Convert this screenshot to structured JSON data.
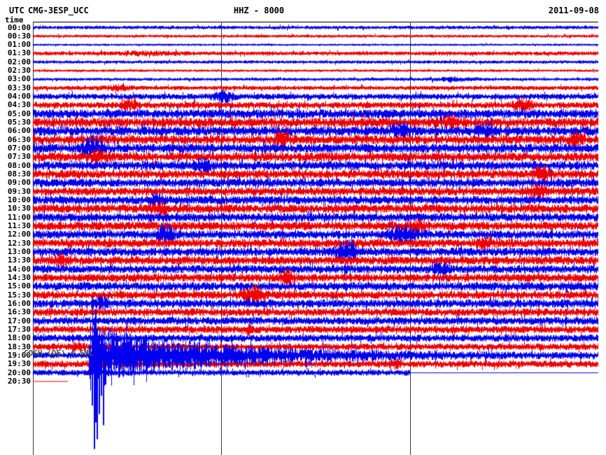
{
  "header": {
    "timezone": "UTC",
    "station": "CMG-3ESP_UCC",
    "channel": "HHZ - 8000",
    "date": "2011-09-08",
    "time_axis_label": "time"
  },
  "chart_data": {
    "type": "helicorder",
    "title": "HHZ - 8000",
    "station": "CMG-3ESP_UCC",
    "timezone": "UTC",
    "date": "2011-09-08",
    "minutes_per_line": 30,
    "x_range_minutes": [
      0,
      30
    ],
    "x_gridlines_minutes": [
      0,
      10,
      20
    ],
    "grid_on": true,
    "trace_colors": {
      "even": "#0000ee",
      "odd": "#ee0000"
    },
    "grid_color": "#3c3c3c",
    "event": {
      "label": "GOCH (DE) 4.5ML",
      "row_label": "19:00",
      "onset_frac": 0.1
    },
    "quake": {
      "mass": [
        80,
        116
      ],
      "coda_base": 3.2,
      "coda_amp": 23,
      "coda_tau": 170,
      "spikes": [
        [
          82,
          14,
          34
        ],
        [
          85,
          28,
          72
        ],
        [
          88,
          52,
          134
        ],
        [
          90,
          66,
          96
        ],
        [
          92,
          38,
          120
        ],
        [
          95,
          30,
          84
        ],
        [
          98,
          22,
          58
        ],
        [
          101,
          16,
          100
        ],
        [
          104,
          14,
          42
        ],
        [
          108,
          11,
          30
        ],
        [
          112,
          9,
          22
        ]
      ]
    },
    "rows": [
      {
        "label": "00:00",
        "amp": 1.6,
        "bursts": []
      },
      {
        "label": "00:30",
        "amp": 1.3,
        "bursts": []
      },
      {
        "label": "01:00",
        "amp": 0.9,
        "bursts": []
      },
      {
        "label": "01:30",
        "amp": 1.9,
        "bursts": [
          [
            0.2,
            1.5,
            30
          ]
        ]
      },
      {
        "label": "02:00",
        "amp": 1.5,
        "bursts": []
      },
      {
        "label": "02:30",
        "amp": 1.1,
        "bursts": []
      },
      {
        "label": "03:00",
        "amp": 1.4,
        "bursts": [
          [
            0.75,
            1.5,
            20
          ]
        ]
      },
      {
        "label": "03:30",
        "amp": 2.0,
        "bursts": [
          [
            0.15,
            2,
            15
          ]
        ]
      },
      {
        "label": "04:00",
        "amp": 2.9,
        "bursts": [
          [
            0.335,
            4.5,
            10
          ]
        ]
      },
      {
        "label": "04:30",
        "amp": 3.2,
        "bursts": [
          [
            0.17,
            4,
            8
          ],
          [
            0.866,
            5,
            9
          ]
        ]
      },
      {
        "label": "05:00",
        "amp": 4.6,
        "bursts": []
      },
      {
        "label": "05:30",
        "amp": 4.8,
        "bursts": [
          [
            0.74,
            5,
            8
          ]
        ]
      },
      {
        "label": "06:00",
        "amp": 4.8,
        "bursts": [
          [
            0.65,
            6,
            9
          ],
          [
            0.8,
            5,
            8
          ]
        ]
      },
      {
        "label": "06:30",
        "amp": 4.6,
        "bursts": [
          [
            0.44,
            5,
            8
          ],
          [
            0.96,
            5,
            7
          ]
        ]
      },
      {
        "label": "07:00",
        "amp": 4.6,
        "bursts": [
          [
            0.105,
            10,
            9
          ]
        ]
      },
      {
        "label": "07:30",
        "amp": 4.6,
        "bursts": [
          [
            0.115,
            6,
            8
          ]
        ]
      },
      {
        "label": "08:00",
        "amp": 4.6,
        "bursts": [
          [
            0.3,
            5,
            7
          ]
        ]
      },
      {
        "label": "08:30",
        "amp": 4.3,
        "bursts": [
          [
            0.9,
            6,
            8
          ]
        ]
      },
      {
        "label": "09:00",
        "amp": 4.3,
        "bursts": []
      },
      {
        "label": "09:30",
        "amp": 4.1,
        "bursts": [
          [
            0.89,
            6,
            8
          ]
        ]
      },
      {
        "label": "10:00",
        "amp": 4.3,
        "bursts": [
          [
            0.22,
            5,
            7
          ]
        ]
      },
      {
        "label": "10:30",
        "amp": 4.3,
        "bursts": [
          [
            0.225,
            6,
            8
          ]
        ]
      },
      {
        "label": "11:00",
        "amp": 4.3,
        "bursts": []
      },
      {
        "label": "11:30",
        "amp": 4.3,
        "bursts": [
          [
            0.68,
            5,
            8
          ]
        ]
      },
      {
        "label": "12:00",
        "amp": 4.3,
        "bursts": [
          [
            0.235,
            8,
            8
          ],
          [
            0.655,
            8,
            12
          ]
        ]
      },
      {
        "label": "12:30",
        "amp": 4.3,
        "bursts": [
          [
            0.8,
            5,
            7
          ]
        ]
      },
      {
        "label": "13:00",
        "amp": 4.3,
        "bursts": [
          [
            0.555,
            12,
            9
          ]
        ]
      },
      {
        "label": "13:30",
        "amp": 4.3,
        "bursts": [
          [
            0.05,
            5,
            6
          ]
        ]
      },
      {
        "label": "14:00",
        "amp": 4.1,
        "bursts": [
          [
            0.72,
            5,
            7
          ]
        ]
      },
      {
        "label": "14:30",
        "amp": 4.1,
        "bursts": [
          [
            0.45,
            6,
            7
          ]
        ]
      },
      {
        "label": "15:00",
        "amp": 4.3,
        "bursts": []
      },
      {
        "label": "15:30",
        "amp": 4.1,
        "bursts": [
          [
            0.39,
            9,
            9
          ]
        ]
      },
      {
        "label": "16:00",
        "amp": 4.3,
        "bursts": [
          [
            0.12,
            4,
            6
          ]
        ]
      },
      {
        "label": "16:30",
        "amp": 3.9,
        "bursts": []
      },
      {
        "label": "17:00",
        "amp": 3.9,
        "bursts": []
      },
      {
        "label": "17:30",
        "amp": 3.6,
        "bursts": [
          [
            0.38,
            4,
            6
          ]
        ]
      },
      {
        "label": "18:00",
        "amp": 3.6,
        "bursts": []
      },
      {
        "label": "18:30",
        "amp": 3.3,
        "bursts": [
          [
            0.08,
            4,
            5
          ]
        ]
      },
      {
        "label": "19:00",
        "amp": 3.0,
        "bursts": [],
        "quake": true
      },
      {
        "label": "19:30",
        "amp": 3.4,
        "bursts": [
          [
            0.115,
            4,
            6
          ],
          [
            0.64,
            4,
            5
          ]
        ]
      },
      {
        "label": "20:00",
        "amp": 2.9,
        "bursts": [],
        "end_frac": 0.666
      },
      {
        "label": "20:30",
        "amp": 0.5,
        "bursts": [],
        "draw_to": 0.062
      }
    ]
  }
}
